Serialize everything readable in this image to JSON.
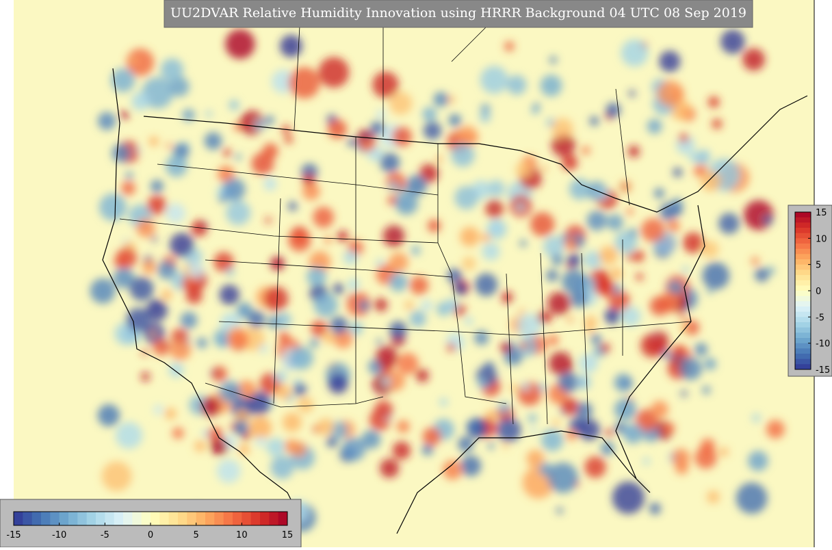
{
  "title": "UU2DVAR Relative Humidity Innovation using HRRR Background 04 UTC 08 Sep 2019",
  "colorbar_right": {
    "ticks": [
      15,
      10,
      5,
      0,
      -5,
      -10,
      -15
    ]
  },
  "colorbar_bottom": {
    "ticks": [
      -15,
      -10,
      -5,
      0,
      5,
      10,
      15
    ]
  }
}
